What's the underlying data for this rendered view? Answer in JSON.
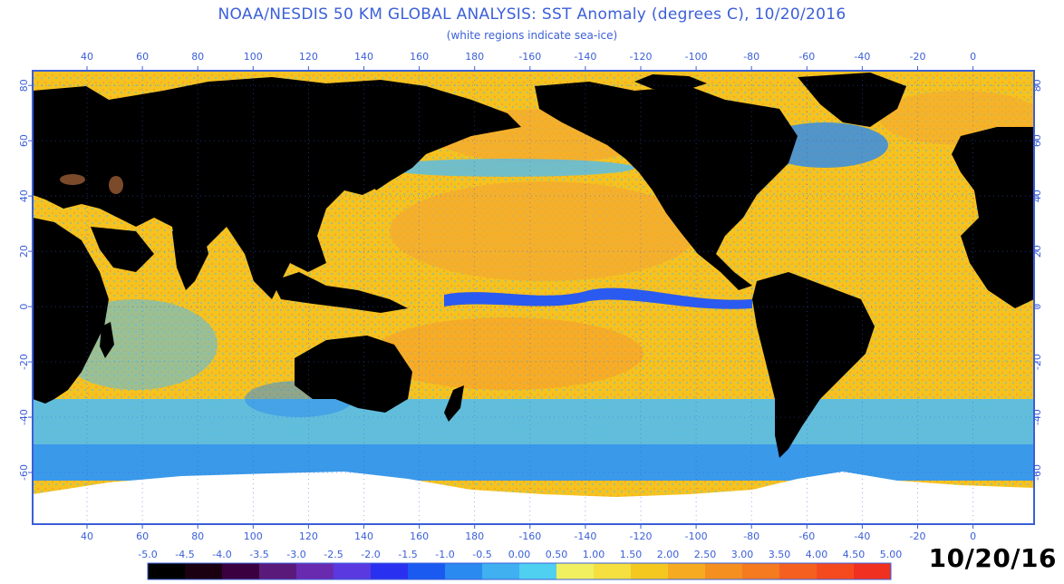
{
  "header": {
    "title": "NOAA/NESDIS 50 KM GLOBAL ANALYSIS: SST Anomaly (degrees C), 10/20/2016",
    "subtitle": "(white regions indicate sea-ice)"
  },
  "map": {
    "longitude_labels": [
      "40",
      "60",
      "80",
      "100",
      "120",
      "140",
      "160",
      "180",
      "-160",
      "-140",
      "-120",
      "-100",
      "-80",
      "-60",
      "-40",
      "-20",
      "0"
    ],
    "latitude_labels": [
      "80",
      "60",
      "40",
      "20",
      "0",
      "-20",
      "-40",
      "-60"
    ],
    "colors": {
      "ocean_warm": "#f5c220",
      "ocean_hot": "#f59a2b",
      "ocean_cool": "#52bdf0",
      "ocean_cold": "#2a6ef0",
      "land": "#000000",
      "sea_ice": "#ffffff",
      "frame": "#3b5fd8"
    }
  },
  "colorbar": {
    "labels": [
      "-5.0",
      "-4.5",
      "-4.0",
      "-3.5",
      "-3.0",
      "-2.5",
      "-2.0",
      "-1.5",
      "-1.0",
      "-0.5",
      "0.00",
      "0.50",
      "1.00",
      "1.50",
      "2.00",
      "2.50",
      "3.00",
      "3.50",
      "4.00",
      "4.50",
      "5.00"
    ],
    "colors": [
      "#000000",
      "#1a0010",
      "#3a0040",
      "#5a1a7a",
      "#6a2ab0",
      "#5a3ae0",
      "#2a30f0",
      "#1a5af0",
      "#2a8af0",
      "#40b0f0",
      "#50d0f0",
      "#f0f060",
      "#f5e040",
      "#f5c820",
      "#f5aa20",
      "#f59020",
      "#f57a20",
      "#f56020",
      "#f54a20",
      "#f03020"
    ]
  },
  "date_stamp": "10/20/16"
}
